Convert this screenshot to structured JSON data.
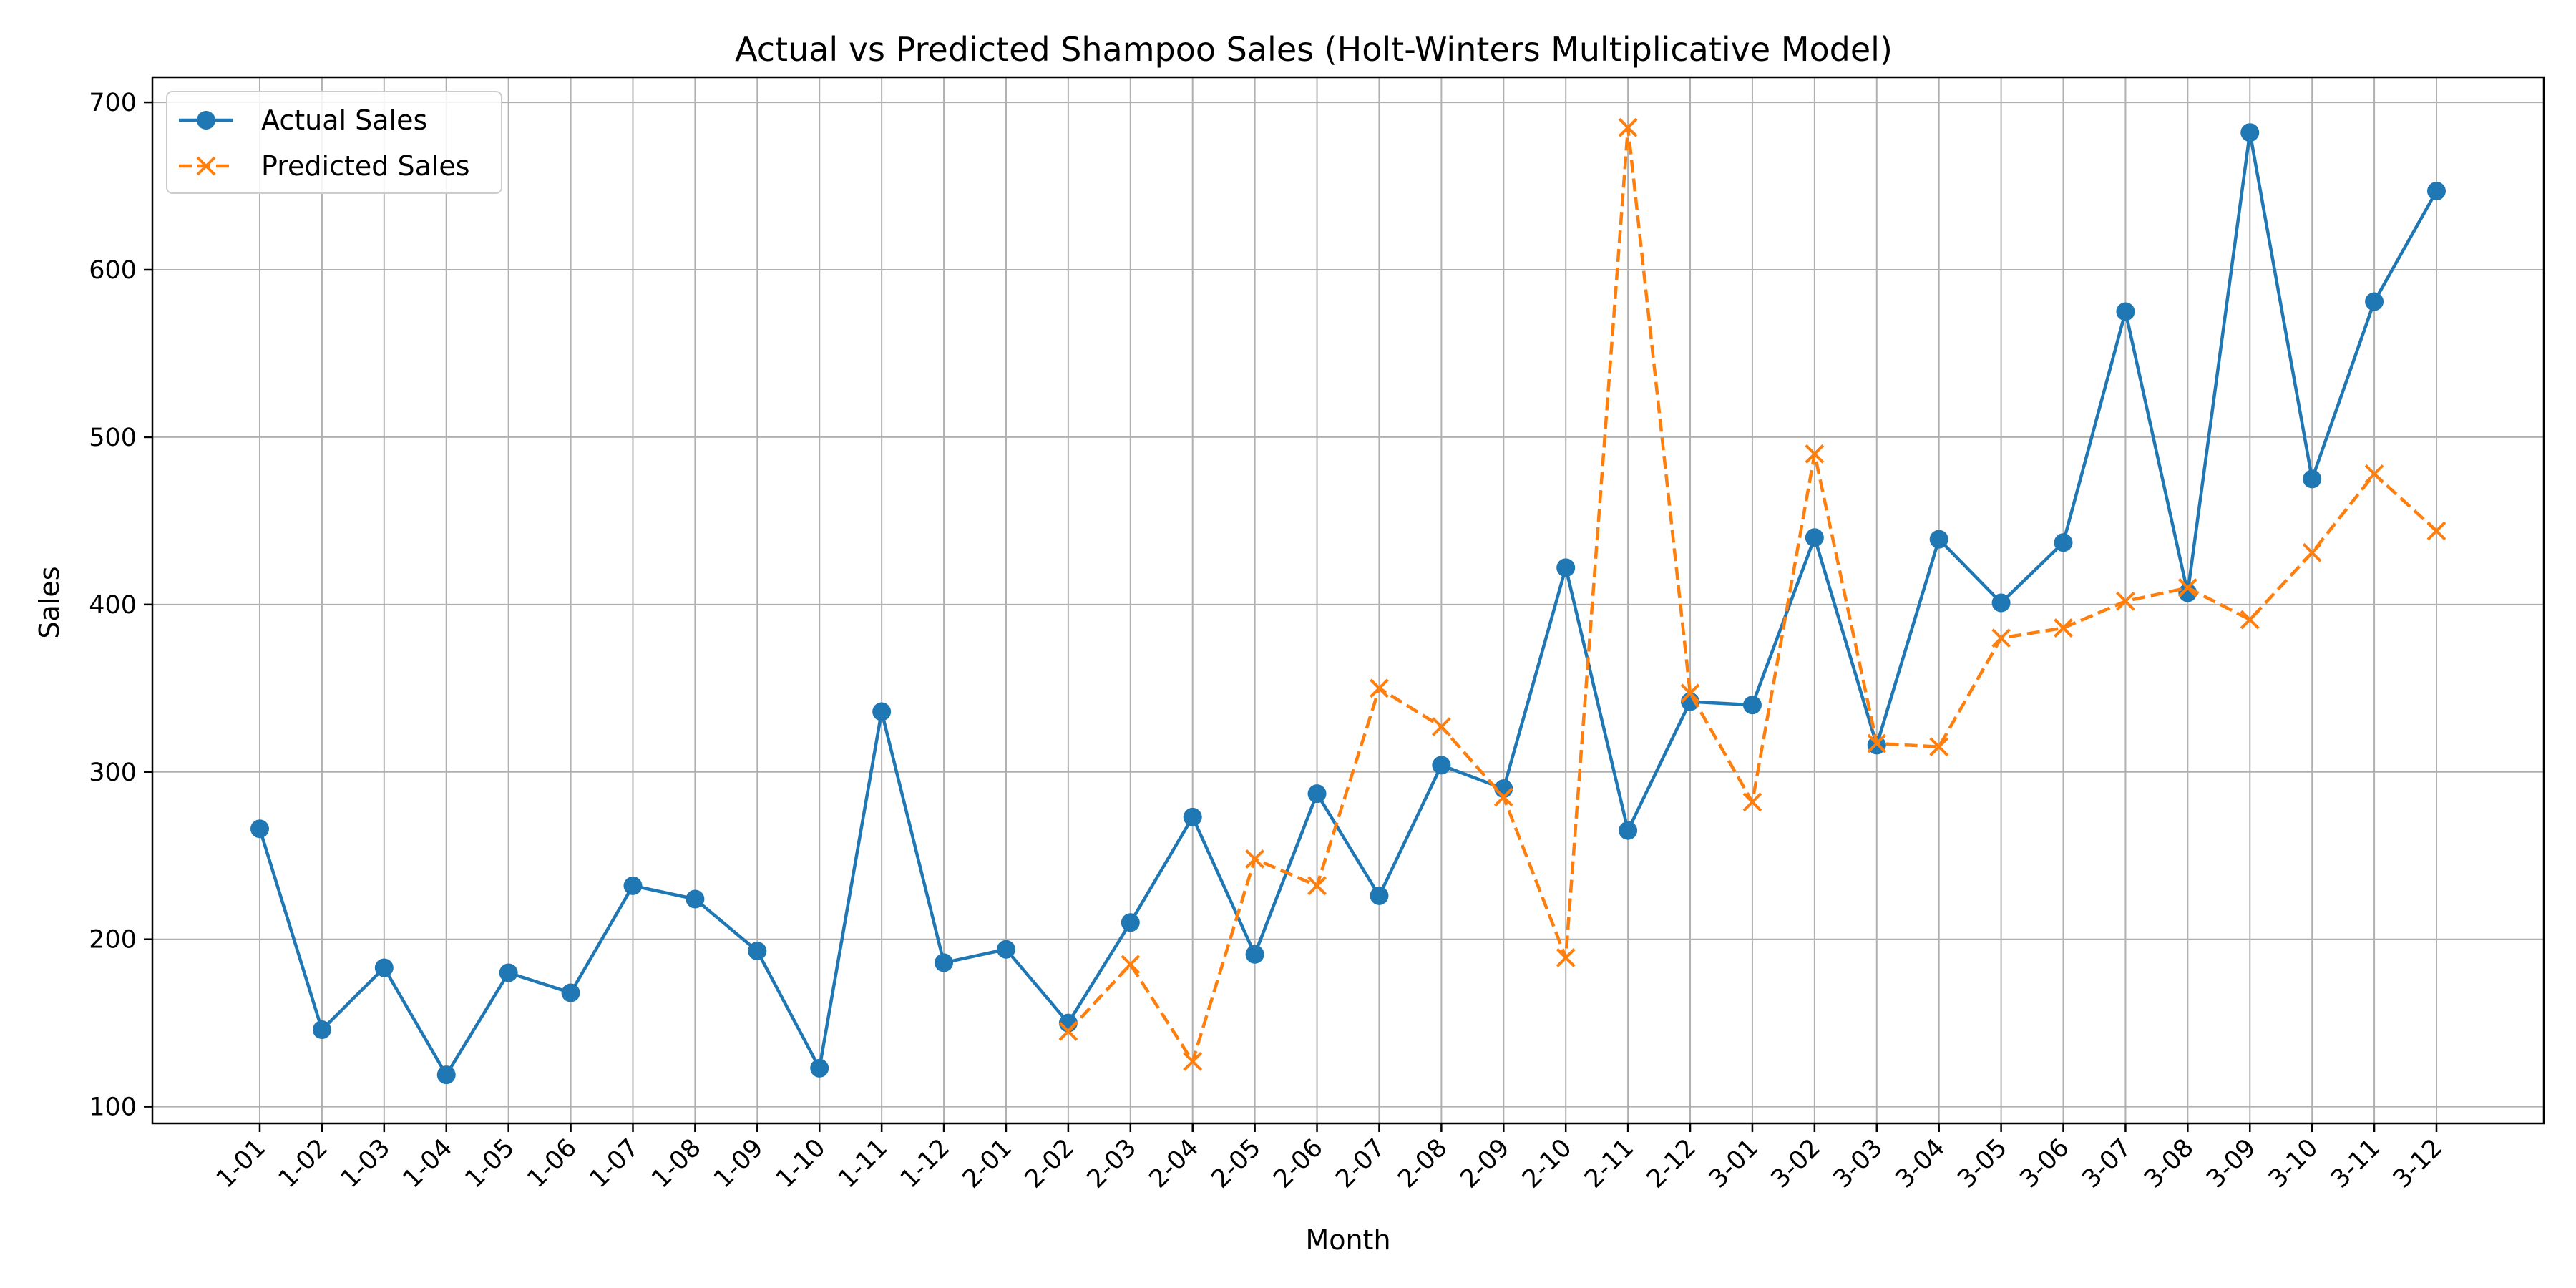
{
  "chart_data": {
    "type": "line",
    "title": "Actual vs Predicted Shampoo Sales (Holt-Winters Multiplicative Model)",
    "xlabel": "Month",
    "ylabel": "Sales",
    "categories": [
      "1-01",
      "1-02",
      "1-03",
      "1-04",
      "1-05",
      "1-06",
      "1-07",
      "1-08",
      "1-09",
      "1-10",
      "1-11",
      "1-12",
      "2-01",
      "2-02",
      "2-03",
      "2-04",
      "2-05",
      "2-06",
      "2-07",
      "2-08",
      "2-09",
      "2-10",
      "2-11",
      "2-12",
      "3-01",
      "3-02",
      "3-03",
      "3-04",
      "3-05",
      "3-06",
      "3-07",
      "3-08",
      "3-09",
      "3-10",
      "3-11",
      "3-12"
    ],
    "ylim": [
      90,
      715
    ],
    "yticks": [
      100,
      200,
      300,
      400,
      500,
      600,
      700
    ],
    "grid": true,
    "legend_position": "top-left",
    "series": [
      {
        "name": "Actual Sales",
        "color": "#1f77b4",
        "marker": "circle",
        "line_style": "solid",
        "values": [
          266,
          146,
          183,
          119,
          180,
          168,
          232,
          224,
          193,
          123,
          336,
          186,
          194,
          150,
          210,
          273,
          191,
          287,
          226,
          304,
          290,
          422,
          265,
          342,
          340,
          440,
          316,
          439,
          401,
          437,
          575,
          407,
          682,
          475,
          581,
          647
        ]
      },
      {
        "name": "Predicted Sales",
        "color": "#ff7f0e",
        "marker": "x",
        "line_style": "dashed",
        "values": [
          null,
          null,
          null,
          null,
          null,
          null,
          null,
          null,
          null,
          null,
          null,
          null,
          null,
          145,
          185,
          127,
          248,
          232,
          350,
          327,
          285,
          189,
          685,
          347,
          282,
          490,
          317,
          315,
          380,
          386,
          402,
          410,
          391,
          431,
          478,
          444
        ]
      }
    ]
  }
}
